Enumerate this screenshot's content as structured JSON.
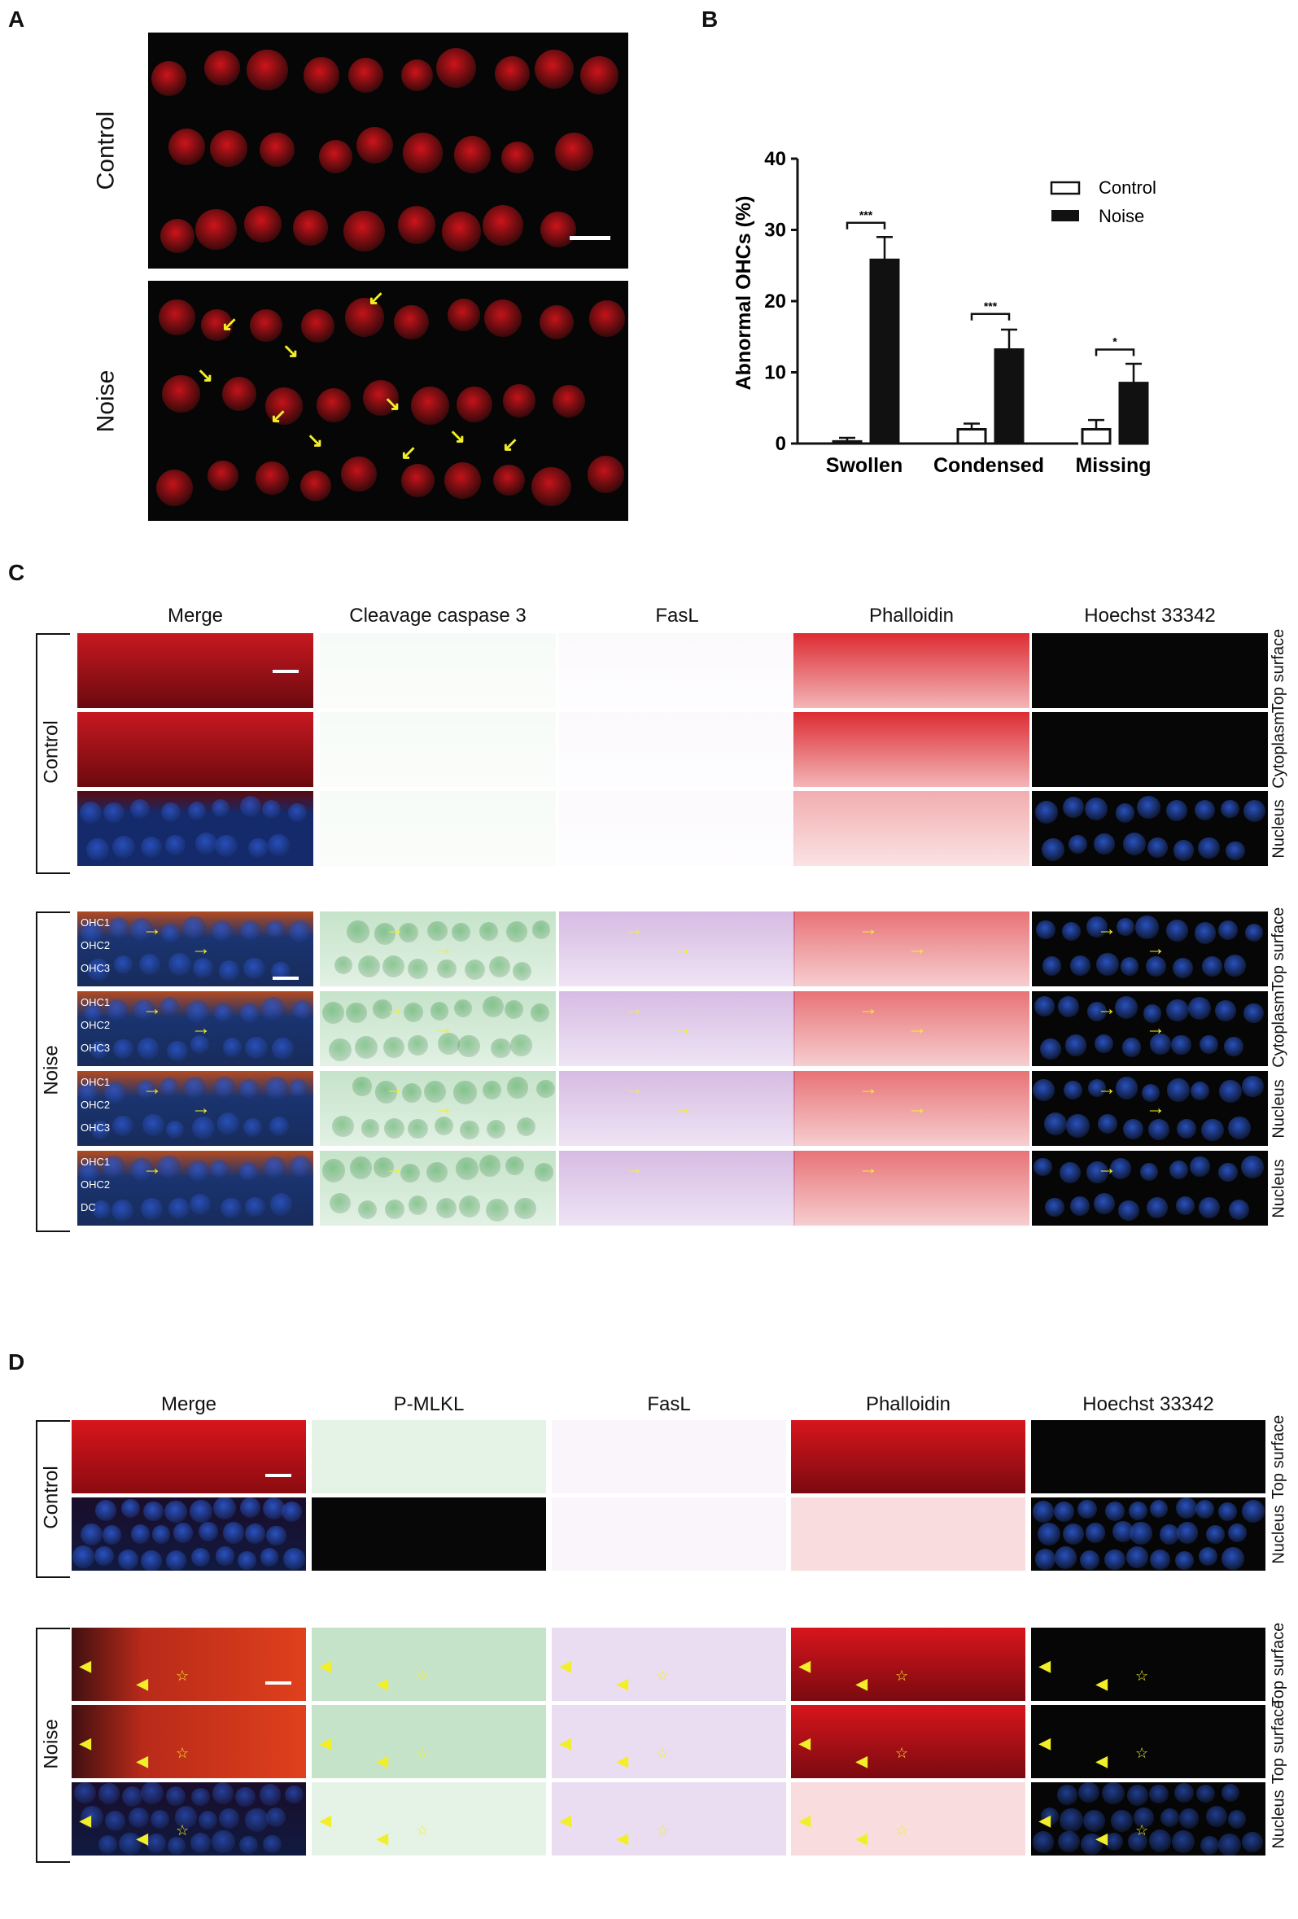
{
  "panel_letters": {
    "a": "A",
    "b": "B",
    "c": "C",
    "d": "D"
  },
  "panel_a": {
    "rows": [
      "Control",
      "Noise"
    ]
  },
  "panel_b": {
    "legend": [
      "Control",
      "Noise"
    ],
    "significance": [
      "***",
      "***",
      "*"
    ]
  },
  "chart_data": {
    "type": "bar",
    "categories": [
      "Swollen",
      "Condensed",
      "Missing"
    ],
    "series": [
      {
        "name": "Control",
        "values": [
          0.3,
          2.0,
          2.0
        ],
        "errors": [
          0.5,
          0.8,
          1.3
        ]
      },
      {
        "name": "Noise",
        "values": [
          25.8,
          13.2,
          8.5
        ],
        "errors": [
          3.2,
          2.8,
          2.7
        ]
      }
    ],
    "ylabel": "Abnormal OHCs (%)",
    "ylim": [
      0,
      40
    ],
    "yticks": [
      "0",
      "10",
      "20",
      "30",
      "40"
    ],
    "colors": {
      "Control": "#ffffff",
      "Noise": "#111111"
    }
  },
  "panel_c": {
    "columns": [
      "Merge",
      "Cleavage caspase 3",
      "FasL",
      "Phalloidin",
      "Hoechst 33342"
    ],
    "groups": [
      "Control",
      "Noise"
    ],
    "row_labels": [
      "Top surface",
      "Cytoplasm",
      "Nucleus",
      "Top surface",
      "Cytoplasm",
      "Nucleus",
      "Nucleus"
    ],
    "ohc_labels": [
      [
        "OHC1",
        "OHC2",
        "OHC3"
      ],
      [
        "OHC1",
        "OHC2",
        "OHC3"
      ],
      [
        "OHC1",
        "OHC2",
        "OHC3"
      ],
      [
        "OHC1",
        "OHC2",
        "DC"
      ]
    ]
  },
  "panel_d": {
    "columns": [
      "Merge",
      "P-MLKL",
      "FasL",
      "Phalloidin",
      "Hoechst 33342"
    ],
    "groups": [
      "Control",
      "Noise"
    ],
    "row_labels": [
      "Top surface",
      "Nucleus",
      "Top surface",
      "Top surface",
      "Nucleus"
    ]
  },
  "colors": {
    "red": "#d8151c",
    "green": "#2c9a3c",
    "purple": "#8a3db0",
    "blue": "#2b55c8",
    "arrow": "#f2ef2a"
  }
}
